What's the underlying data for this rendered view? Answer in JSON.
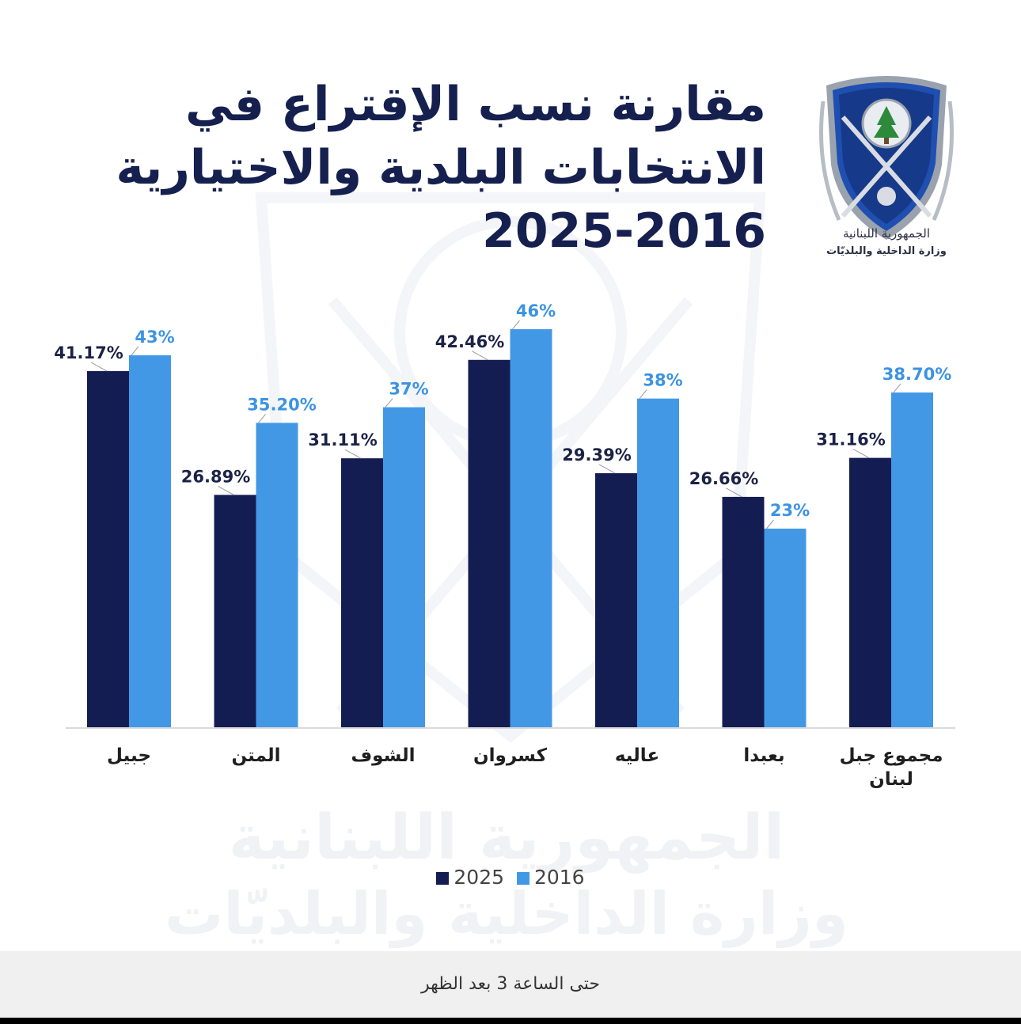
{
  "title": {
    "line1": "مقارنة نسب الإقتراع في",
    "line2": "الانتخابات البلدية والاختيارية",
    "line3": "2025-2016"
  },
  "logo": {
    "name": "ministry-shield-logo",
    "line1": "الجمهورية اللبنانية",
    "line2": "وزارة الداخلية والبلديّات"
  },
  "watermark": {
    "line1": "الجمهورية اللبنانية",
    "line2": "وزارة الداخلية والبلديّات"
  },
  "chart_data": {
    "type": "bar",
    "categories": [
      "جبيل",
      "المتن",
      "الشوف",
      "كسروان",
      "عاليه",
      "بعبدا",
      "مجموع جبل لبنان"
    ],
    "series": [
      {
        "name": "2025",
        "values": [
          41.17,
          26.89,
          31.11,
          42.46,
          29.39,
          26.66,
          31.16
        ],
        "labels": [
          "41.17%",
          "26.89%",
          "31.11%",
          "42.46%",
          "29.39%",
          "26.66%",
          "31.16%"
        ],
        "color": "#141d52"
      },
      {
        "name": "2016",
        "values": [
          43,
          35.2,
          37,
          46,
          38,
          23,
          38.7
        ],
        "labels": [
          "43%",
          "35.20%",
          "37%",
          "46%",
          "38%",
          "23%",
          "38.70%"
        ],
        "color": "#4398e6"
      }
    ],
    "ylim": [
      0,
      50
    ],
    "grid": false,
    "legend_position": "bottom"
  },
  "footer": {
    "text": "حتى الساعة 3 بعد الظهر"
  }
}
